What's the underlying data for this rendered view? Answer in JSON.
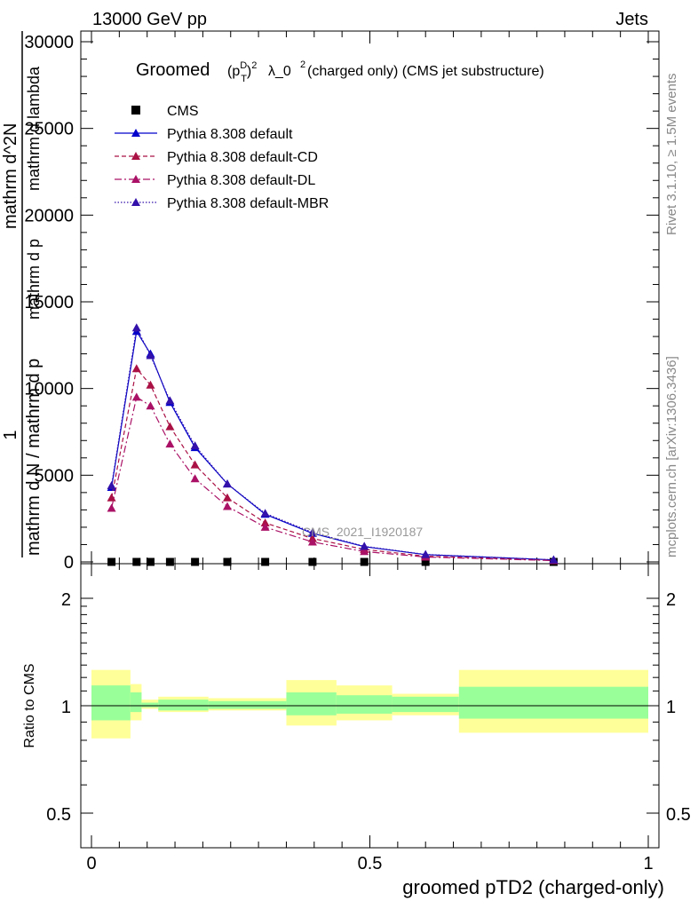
{
  "header": {
    "left": "13000 GeV pp",
    "right": "Jets"
  },
  "side_labels": {
    "rivet": "Rivet 3.1.10, ≥ 1.5M events",
    "mcplots": "mcplots.cern.ch [arXiv:1306.3436]"
  },
  "main_title": {
    "groomed": "Groomed",
    "rest": "λ_0",
    "tail": " (charged only) (CMS jet substructure)"
  },
  "watermark": "CMS_2021_I1920187",
  "y_axis_label": {
    "one": "1",
    "lines": [
      "mathrm d N / mathrm d p",
      "mathrm d^2N",
      "mathrm d p",
      "mathrm d lambda"
    ]
  },
  "ratio_axis_label": "Ratio to CMS",
  "x_axis_label": "groomed pTD2 (charged-only)",
  "legend": [
    {
      "name": "CMS",
      "color": "#000000",
      "style": "square"
    },
    {
      "name": "Pythia 8.308 default",
      "color": "#0000cc",
      "style": "solid"
    },
    {
      "name": "Pythia 8.308 default-CD",
      "color": "#aa1144",
      "style": "dashed"
    },
    {
      "name": "Pythia 8.308 default-DL",
      "color": "#aa1166",
      "style": "dashdot"
    },
    {
      "name": "Pythia 8.308 default-MBR",
      "color": "#3311aa",
      "style": "dotted"
    }
  ],
  "chart_data": [
    {
      "type": "line",
      "panel": "main",
      "xlim": [
        0,
        1
      ],
      "ylim": [
        0,
        30000
      ],
      "x_ticks": [
        "0",
        "0.5",
        "1"
      ],
      "y_ticks": [
        "0",
        "5000",
        "10000",
        "15000",
        "20000",
        "25000",
        "30000"
      ],
      "y_tick_values": [
        0,
        5000,
        10000,
        15000,
        20000,
        25000,
        30000
      ],
      "x_tick_values": [
        0,
        0.5,
        1
      ],
      "series": [
        {
          "name": "CMS",
          "x": [
            0.036,
            0.081,
            0.106,
            0.141,
            0.186,
            0.244,
            0.312,
            0.397,
            0.49,
            0.6,
            0.83
          ],
          "y": [
            0,
            0,
            0,
            0,
            0,
            0,
            0,
            0,
            0,
            0,
            0
          ]
        },
        {
          "name": "Pythia 8.308 default",
          "x": [
            0.036,
            0.081,
            0.106,
            0.141,
            0.186,
            0.244,
            0.312,
            0.397,
            0.49,
            0.6,
            0.83
          ],
          "y": [
            4300,
            13300,
            12000,
            9200,
            6600,
            4500,
            2750,
            1650,
            880,
            420,
            120
          ]
        },
        {
          "name": "Pythia 8.308 default-CD",
          "x": [
            0.036,
            0.081,
            0.106,
            0.141,
            0.186,
            0.244,
            0.312,
            0.397,
            0.49,
            0.6,
            0.83
          ],
          "y": [
            3700,
            11150,
            10200,
            7800,
            5600,
            3700,
            2250,
            1350,
            720,
            330,
            90
          ]
        },
        {
          "name": "Pythia 8.308 default-DL",
          "x": [
            0.036,
            0.081,
            0.106,
            0.141,
            0.186,
            0.244,
            0.312,
            0.397,
            0.49,
            0.6,
            0.83
          ],
          "y": [
            3100,
            9500,
            9000,
            6800,
            4800,
            3200,
            2000,
            1150,
            600,
            280,
            75
          ]
        },
        {
          "name": "Pythia 8.308 default-MBR",
          "x": [
            0.036,
            0.081,
            0.106,
            0.141,
            0.186,
            0.244,
            0.312,
            0.397,
            0.49,
            0.6,
            0.83
          ],
          "y": [
            4400,
            13500,
            11900,
            9300,
            6700,
            4500,
            2800,
            1700,
            900,
            430,
            120
          ]
        }
      ]
    },
    {
      "type": "area",
      "panel": "ratio",
      "xlim": [
        0,
        1
      ],
      "ylim": [
        0.4,
        2.3
      ],
      "y_scale": "log",
      "x_ticks": [
        "0",
        "0.5",
        "1"
      ],
      "y_ticks_left": [
        "0.5",
        "1",
        "2"
      ],
      "y_ticks_right": [
        "0.5",
        "1",
        "2"
      ],
      "y_tick_values": [
        0.5,
        1,
        2
      ],
      "bins": [
        {
          "x0": 0.0,
          "x1": 0.07,
          "outer": [
            0.81,
            1.26
          ],
          "inner": [
            0.91,
            1.14
          ]
        },
        {
          "x0": 0.07,
          "x1": 0.09,
          "outer": [
            0.91,
            1.15
          ],
          "inner": [
            0.96,
            1.09
          ]
        },
        {
          "x0": 0.09,
          "x1": 0.12,
          "outer": [
            0.98,
            1.04
          ],
          "inner": [
            0.99,
            1.02
          ]
        },
        {
          "x0": 0.12,
          "x1": 0.21,
          "outer": [
            0.96,
            1.06
          ],
          "inner": [
            0.97,
            1.04
          ]
        },
        {
          "x0": 0.21,
          "x1": 0.35,
          "outer": [
            0.97,
            1.05
          ],
          "inner": [
            0.98,
            1.03
          ]
        },
        {
          "x0": 0.35,
          "x1": 0.44,
          "outer": [
            0.88,
            1.18
          ],
          "inner": [
            0.94,
            1.09
          ]
        },
        {
          "x0": 0.44,
          "x1": 0.54,
          "outer": [
            0.91,
            1.14
          ],
          "inner": [
            0.95,
            1.07
          ]
        },
        {
          "x0": 0.54,
          "x1": 0.66,
          "outer": [
            0.94,
            1.08
          ],
          "inner": [
            0.96,
            1.06
          ]
        },
        {
          "x0": 0.66,
          "x1": 1.0,
          "outer": [
            0.84,
            1.26
          ],
          "inner": [
            0.92,
            1.13
          ]
        }
      ]
    }
  ]
}
